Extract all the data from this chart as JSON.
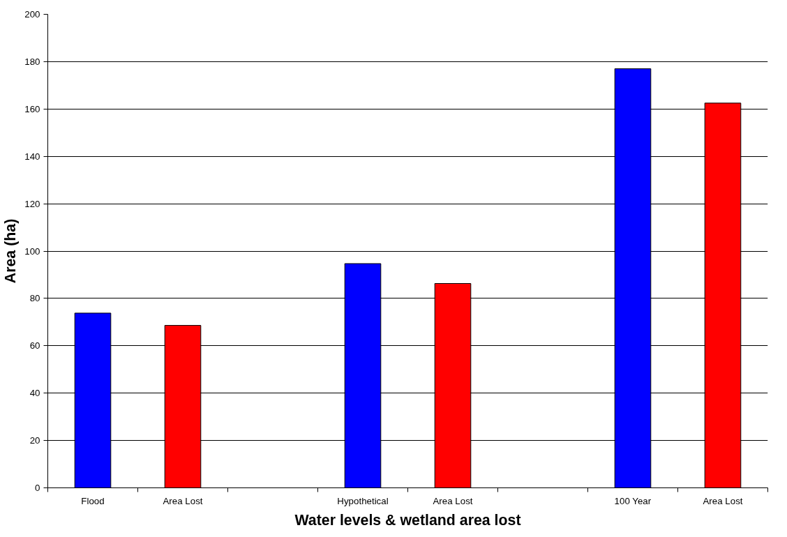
{
  "chart_data": {
    "type": "bar",
    "xlabel": "Water levels & wetland area lost",
    "ylabel": "Area (ha)",
    "categories": [
      "Flood",
      "Area Lost",
      null,
      "Hypothetical",
      "Area Lost",
      null,
      "100 Year",
      "Area Lost"
    ],
    "values": [
      73.8,
      68.6,
      null,
      94.7,
      86.3,
      null,
      177,
      162.5
    ],
    "colors": [
      "#0000ff",
      "#ff0000",
      "#0000ff",
      "#0000ff",
      "#ff0000",
      "#0000ff",
      "#0000ff",
      "#ff0000"
    ],
    "ylim": [
      0,
      200
    ],
    "yticks": [
      0,
      20,
      40,
      60,
      80,
      100,
      120,
      140,
      160,
      180,
      200
    ],
    "grid": "y"
  }
}
